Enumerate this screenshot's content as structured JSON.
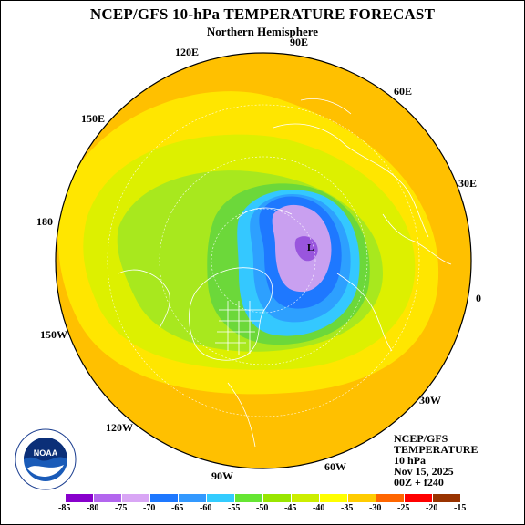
{
  "header": {
    "title": "NCEP/GFS 10-hPa TEMPERATURE FORECAST",
    "subtitle": "Northern Hemisphere"
  },
  "longitude_labels": {
    "e90": "90E",
    "e120": "120E",
    "e60": "60E",
    "e150": "150E",
    "e30": "30E",
    "d180": "180",
    "zero": "0",
    "w150": "150W",
    "w30": "30W",
    "w120": "120W",
    "w60": "60W",
    "w90": "90W"
  },
  "info_block": {
    "model": "NCEP/GFS",
    "field": "TEMPERATURE",
    "level": "10 hPa",
    "date": "Nov 15, 2025",
    "run": "00Z + f240"
  },
  "logo": {
    "text": "NOAA",
    "ring_text": "NATIONAL OCEANIC AND ATMOSPHERIC ADMINISTRATION · U.S. DEPARTMENT OF COMMERCE",
    "icon": "noaa-logo-icon"
  },
  "legend": {
    "ticks": [
      "-85",
      "-80",
      "-75",
      "-70",
      "-65",
      "-60",
      "-55",
      "-50",
      "-45",
      "-40",
      "-35",
      "-30",
      "-25",
      "-20",
      "-15"
    ],
    "colors": [
      "#8800cc",
      "#b366ee",
      "#d9a6f5",
      "#1e78ff",
      "#3399ff",
      "#33ccff",
      "#66e633",
      "#99e600",
      "#ccee00",
      "#ffff00",
      "#ffcc00",
      "#ff6600",
      "#ff0000",
      "#993300"
    ]
  },
  "map_colors": {
    "outer": "#ffc000",
    "band1": "#ffe600",
    "band2": "#ddf000",
    "band3": "#a8e81e",
    "band4": "#6cd83a",
    "band5": "#34c8ff",
    "band6": "#2da0ff",
    "band7": "#1e78ff",
    "vortex": "#c9a0f0",
    "core": "#9955dd",
    "coast": "#ffffff"
  }
}
